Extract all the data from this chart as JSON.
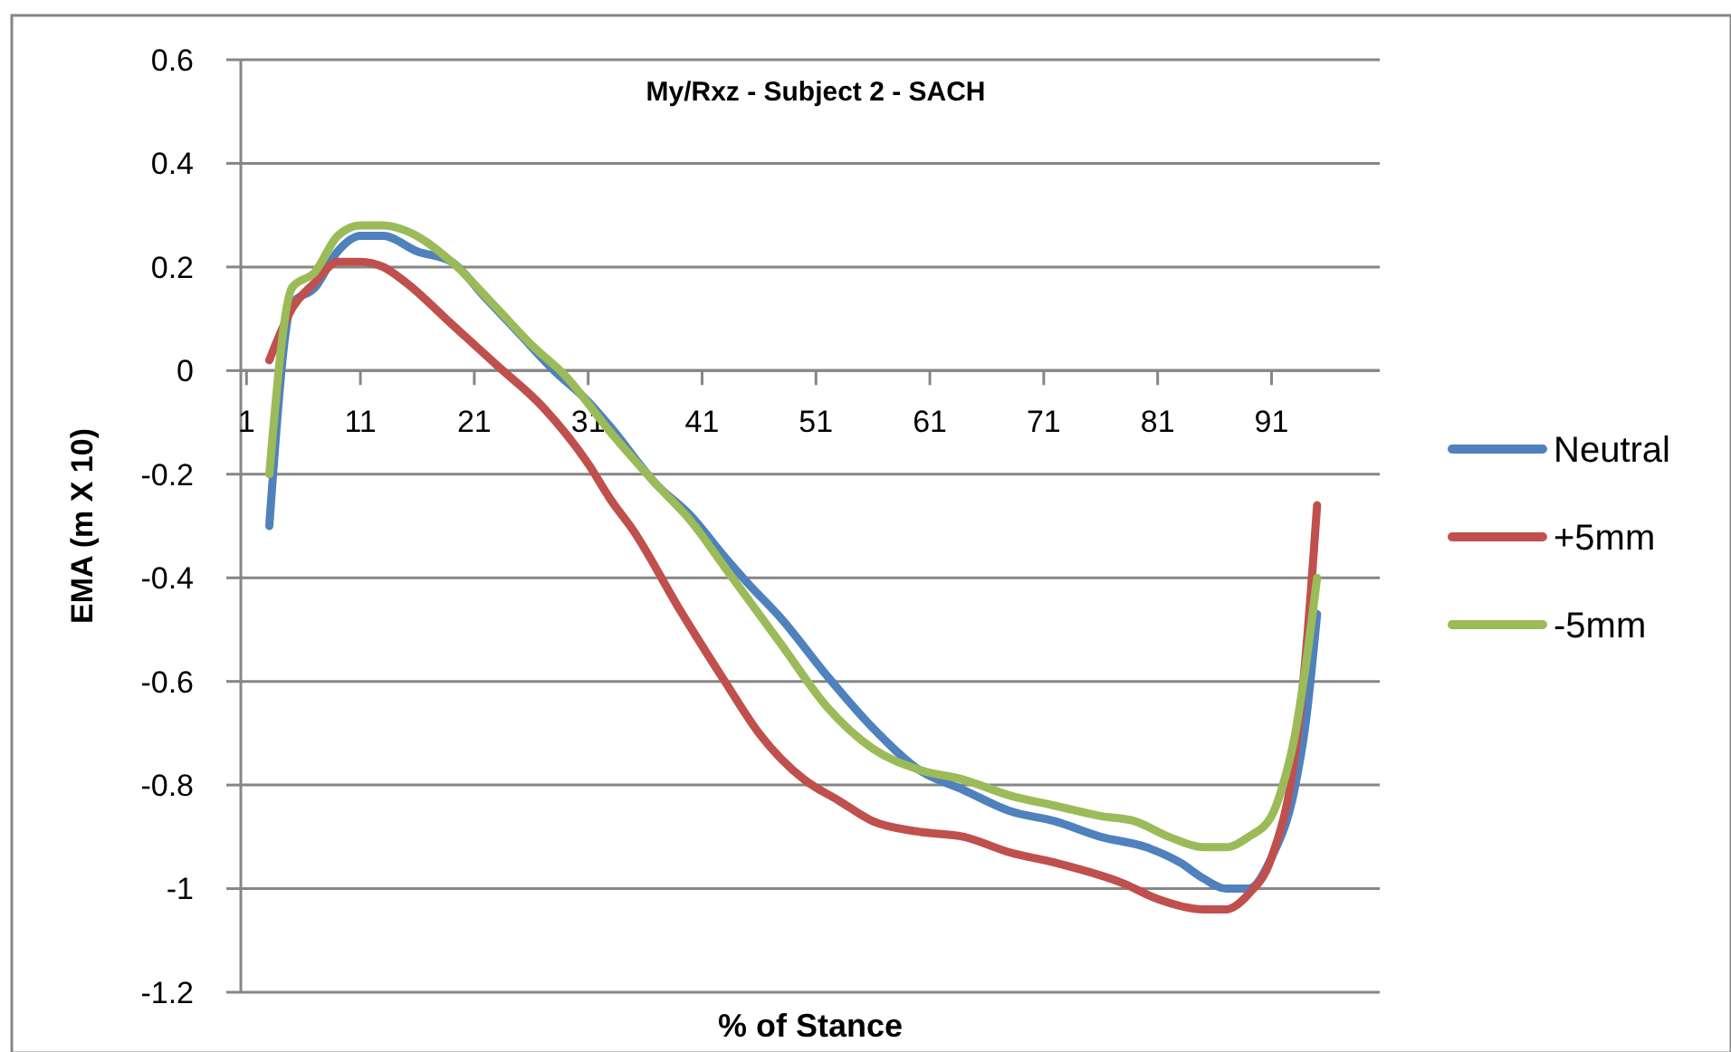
{
  "chart_data": {
    "type": "line",
    "title": "My/Rxz - Subject 2 - SACH",
    "xlabel": "% of Stance",
    "ylabel": "EMA (m X 10)",
    "xlim": [
      0.5,
      100.5
    ],
    "xticks": [
      1,
      11,
      21,
      31,
      41,
      51,
      61,
      71,
      81,
      91
    ],
    "ylim": [
      -1.2,
      0.6
    ],
    "yticks": [
      -1.2,
      -1,
      -0.8,
      -0.6,
      -0.4,
      -0.2,
      0,
      0.2,
      0.4,
      0.6
    ],
    "grid": "y",
    "legend": "right",
    "series": [
      {
        "name": "Neutral",
        "color": "#4f81bd",
        "x": [
          3,
          5,
          7,
          9,
          11,
          13,
          16,
          19,
          22,
          25,
          28,
          31,
          33,
          37,
          40,
          43,
          45,
          48,
          52,
          56,
          60,
          64,
          68,
          72,
          76,
          80,
          83,
          85,
          87,
          89,
          91,
          93,
          94,
          95
        ],
        "values": [
          -0.3,
          0.13,
          0.16,
          0.23,
          0.26,
          0.26,
          0.23,
          0.21,
          0.14,
          0.07,
          0.0,
          -0.06,
          -0.11,
          -0.22,
          -0.28,
          -0.36,
          -0.41,
          -0.48,
          -0.59,
          -0.69,
          -0.77,
          -0.81,
          -0.85,
          -0.87,
          -0.9,
          -0.92,
          -0.95,
          -0.98,
          -1.0,
          -1.0,
          -0.94,
          -0.81,
          -0.68,
          -0.47
        ]
      },
      {
        "name": "+5mm",
        "color": "#c0504d",
        "x": [
          3,
          5,
          7,
          9,
          11,
          13,
          15,
          19,
          23,
          27,
          31,
          33,
          35,
          39,
          43,
          46,
          50,
          53,
          56,
          60,
          64,
          68,
          72,
          78,
          81,
          85,
          87,
          89,
          91,
          93,
          94,
          95
        ],
        "values": [
          0.02,
          0.12,
          0.17,
          0.21,
          0.21,
          0.2,
          0.17,
          0.09,
          0.01,
          -0.07,
          -0.18,
          -0.25,
          -0.31,
          -0.46,
          -0.6,
          -0.7,
          -0.79,
          -0.83,
          -0.87,
          -0.89,
          -0.9,
          -0.93,
          -0.95,
          -0.99,
          -1.02,
          -1.04,
          -1.04,
          -1.01,
          -0.94,
          -0.75,
          -0.55,
          -0.26
        ]
      },
      {
        "name": "-5mm",
        "color": "#9bbb59",
        "x": [
          3,
          5,
          7,
          9,
          11,
          13,
          15,
          19,
          23,
          26,
          29,
          33,
          37,
          40,
          43,
          45,
          48,
          52,
          56,
          60,
          64,
          68,
          72,
          76,
          79,
          82,
          85,
          87,
          89,
          91,
          92,
          93,
          94,
          95
        ],
        "values": [
          -0.2,
          0.16,
          0.19,
          0.26,
          0.28,
          0.28,
          0.27,
          0.21,
          0.12,
          0.05,
          -0.01,
          -0.12,
          -0.22,
          -0.29,
          -0.38,
          -0.44,
          -0.53,
          -0.65,
          -0.73,
          -0.77,
          -0.79,
          -0.82,
          -0.84,
          -0.86,
          -0.87,
          -0.9,
          -0.92,
          -0.92,
          -0.9,
          -0.86,
          -0.8,
          -0.71,
          -0.57,
          -0.4
        ]
      }
    ]
  }
}
